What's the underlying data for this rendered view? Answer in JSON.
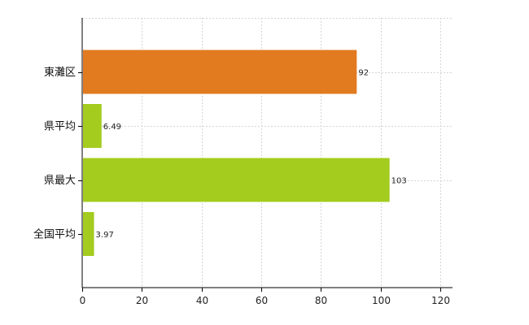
{
  "chart_data": {
    "type": "bar",
    "orientation": "horizontal",
    "categories": [
      "東灘区",
      "県平均",
      "県最大",
      "全国平均"
    ],
    "values": [
      92,
      6.49,
      103,
      3.97
    ],
    "value_labels": [
      "92",
      "6.49",
      "103",
      "3.97"
    ],
    "bar_colors": [
      "#e27a1f",
      "#a3cc1f",
      "#a3cc1f",
      "#a3cc1f"
    ],
    "xlim": [
      0,
      120
    ],
    "x_ticks": [
      0,
      20,
      40,
      60,
      80,
      100,
      120
    ],
    "x_tick_labels": [
      "0",
      "20",
      "40",
      "60",
      "80",
      "100",
      "120"
    ],
    "grid": true,
    "legend": "none",
    "title": "",
    "xlabel": "",
    "ylabel": ""
  }
}
